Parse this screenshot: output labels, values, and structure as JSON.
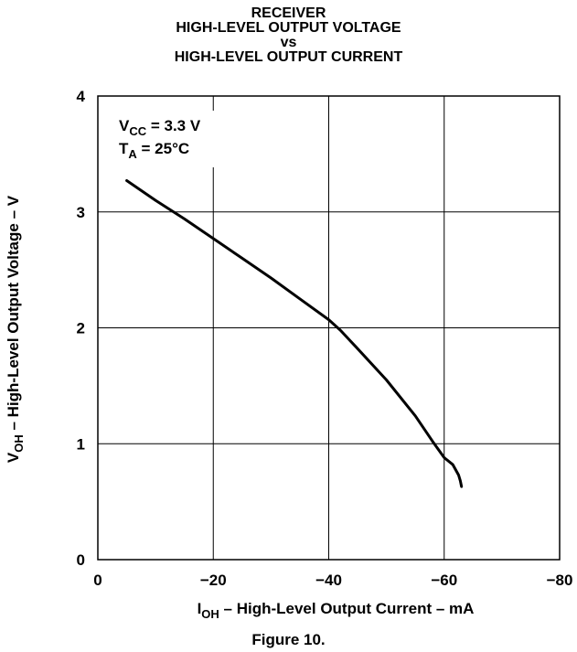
{
  "chart_data": {
    "type": "line",
    "title_lines": [
      "RECEIVER",
      "HIGH-LEVEL OUTPUT VOLTAGE",
      "vs",
      "HIGH-LEVEL OUTPUT CURRENT"
    ],
    "xlabel": {
      "main": "I",
      "sub": "OH",
      "rest": " – High-Level Output Current – mA"
    },
    "ylabel": {
      "main": "V",
      "sub": "OH",
      "rest": " – High-Level Output Voltage – V"
    },
    "xlim": [
      0,
      -80
    ],
    "ylim": [
      0,
      4
    ],
    "xticks": [
      0,
      -20,
      -40,
      -60,
      -80
    ],
    "xtick_labels": [
      "0",
      "−20",
      "−40",
      "−60",
      "−80"
    ],
    "yticks": [
      0,
      1,
      2,
      3,
      4
    ],
    "ytick_labels": [
      "0",
      "1",
      "2",
      "3",
      "4"
    ],
    "grid": true,
    "annotations": [
      {
        "main": "V",
        "sub": "CC",
        "rest": " = 3.3 V"
      },
      {
        "main": "T",
        "sub": "A",
        "rest": " = 25°C"
      }
    ],
    "series": [
      {
        "x": [
          -5,
          -10,
          -15,
          -20,
          -25,
          -30,
          -35,
          -40,
          -42,
          -45,
          -50,
          -55,
          -58,
          -60,
          -61.5,
          -62.5,
          -62.8,
          -63
        ],
        "y": [
          3.27,
          3.1,
          2.94,
          2.77,
          2.6,
          2.43,
          2.25,
          2.07,
          1.98,
          1.82,
          1.55,
          1.24,
          1.02,
          0.88,
          0.82,
          0.73,
          0.68,
          0.63
        ]
      }
    ]
  },
  "caption": "Figure 10."
}
